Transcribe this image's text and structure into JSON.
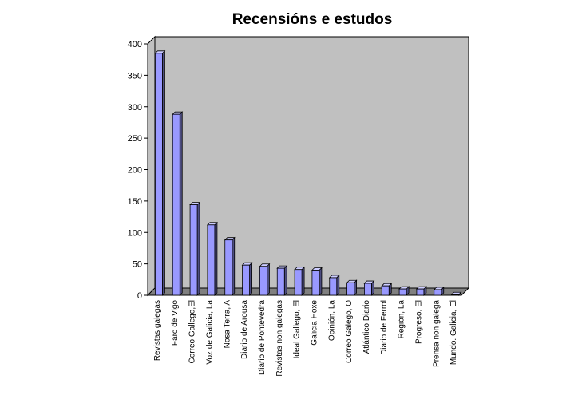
{
  "chart_data": {
    "type": "bar",
    "title": "Recensións e estudos",
    "xlabel": "",
    "ylabel": "",
    "ylim": [
      0,
      400
    ],
    "yticks": [
      0,
      50,
      100,
      150,
      200,
      250,
      300,
      350,
      400
    ],
    "grid": false,
    "legend": "none",
    "categories": [
      "Revistas galegas",
      "Faro de Vigo",
      "Correo Gallego,El",
      "Voz de Galicia, La",
      "Nosa Terra, A",
      "Diario de Arousa",
      "Diario de Pontevedra",
      "Revistas non galegas",
      "Ideal Gallego, El",
      "Galicia Hoxe",
      "Opinión, La",
      "Correo Galego, O",
      "Atlántico Diario",
      "Diario de Ferrol",
      "Región, La",
      "Progreso, El",
      "Prensa non galega",
      "Mundo. Galicia, El"
    ],
    "values": [
      385,
      288,
      144,
      112,
      88,
      48,
      46,
      43,
      41,
      40,
      28,
      20,
      19,
      15,
      10,
      10,
      9,
      1
    ],
    "colors": {
      "wall": "#c0c0c0",
      "floor": "#808080",
      "bar_front": "#9999ff",
      "bar_side": "#4d4d80",
      "bar_top": "#ccccff"
    }
  }
}
